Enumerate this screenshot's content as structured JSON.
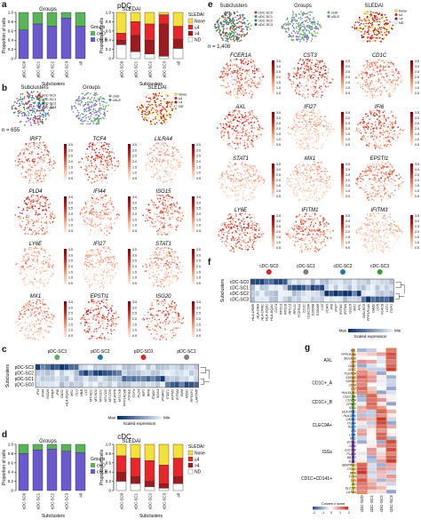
{
  "panels": {
    "a": "a",
    "b": "b",
    "c": "c",
    "d": "d",
    "e": "e",
    "f": "f",
    "g": "g"
  },
  "panel_a": {
    "header": "pDC",
    "groups_title": "Groups",
    "sledai_title": "SLEDAI",
    "ylabel": "Proportion of cells",
    "xlabel": "Subclusters",
    "ticks": [
      "0",
      "0.2",
      "0.4",
      "0.6",
      "0.8",
      "1.0"
    ],
    "categories": [
      "pDC-SC0",
      "pDC-SC1",
      "pDC-SC2",
      "pDC-SC3",
      "All"
    ],
    "groups_legend_title": "Groups",
    "groups_legend": [
      "cHD",
      "cSLE"
    ],
    "sledai_legend_title": "SLEDAI",
    "sledai_legend": [
      "None",
      "≤4",
      ">4",
      "ND"
    ]
  },
  "panel_b": {
    "titles": [
      "Subclusters",
      "Groups",
      "SLEDAI"
    ],
    "n_label": "n = 655",
    "sub_legend": [
      "pDC-SC0",
      "pDC-SC1",
      "pDC-SC2",
      "pDC-SC3"
    ],
    "group_legend": [
      "cHD",
      "cSLE"
    ],
    "sledai_legend": [
      "None",
      "≤4",
      ">4",
      "ND"
    ],
    "genes": [
      "IRF7",
      "TCF4",
      "LILRA4",
      "PLD4",
      "IFI44",
      "ISG15",
      "LY6E",
      "IFI27",
      "STAT1",
      "MX1",
      "EPSTI1",
      "ISG20"
    ],
    "scales": [
      "3.5",
      "3.0",
      "2.5",
      "2.0",
      "1.5",
      "1.0",
      "0.5"
    ]
  },
  "panel_c": {
    "cols": [
      "pDC-SC3",
      "pDC-SC2",
      "pDC-SC0",
      "pDC-SC1"
    ],
    "rows": [
      "pDC-SC3",
      "pDC-SC2",
      "pDC-SC1",
      "pDC-SC0"
    ],
    "ylabel": "Subclusters",
    "genes": [
      "IFI4",
      "IFI44",
      "ISG20",
      "PPBP",
      "IFI6",
      "OAS1",
      "HLA-DQA1",
      "MX1",
      "CLU",
      "HBB",
      "LYZ",
      "MT-ND1",
      "MT-ND2",
      "MT-CO1",
      "MT-CO2",
      "MT-CO3",
      "MT-ATP6",
      "MT-CYB",
      "PPP1R14B",
      "PTPRS",
      "TCF4",
      "PLD4",
      "IRF7",
      "IRF8",
      "ITM2C",
      "SOX4",
      "IFNAR1",
      "STAT1",
      "IFITM1",
      "IFITM3",
      "B2M",
      "MZB1",
      "RPS4Y1",
      "LAPTM5"
    ],
    "legend": {
      "max": "Max",
      "min": "Min",
      "label": "Scaled expression"
    }
  },
  "panel_d": {
    "header": "cDC",
    "groups_title": "Groups",
    "sledai_title": "SLEDAI",
    "ylabel": "Proportion of cells",
    "xlabel": "Subclusters",
    "ticks": [
      "0",
      "0.2",
      "0.4",
      "0.6",
      "0.8",
      "1.0"
    ],
    "categories": [
      "cDC-SC0",
      "cDC-SC1",
      "cDC-SC2",
      "cDC-SC3",
      "All"
    ],
    "groups_legend_title": "Groups",
    "groups_legend": [
      "cHD",
      "cSLE"
    ],
    "sledai_legend_title": "SLEDAI",
    "sledai_legend": [
      "None",
      "≤4",
      ">4",
      "ND"
    ]
  },
  "panel_e": {
    "titles": [
      "Subclusters",
      "Groups",
      "SLEDAI"
    ],
    "n_label": "n = 1,408",
    "sub_legend": [
      "cDC-SC0",
      "cDC-SC1",
      "cDC-SC2",
      "cDC-SC3"
    ],
    "group_legend": [
      "cHD",
      "cSLE"
    ],
    "sledai_legend": [
      "None",
      "≤4",
      ">4",
      "ND"
    ],
    "genes": [
      "FCER1A",
      "CST3",
      "CD1C",
      "AXL",
      "IFI27",
      "IFI6",
      "STAT1",
      "MX1",
      "EPSTI1",
      "LY6E",
      "IFITM1",
      "IFITM3"
    ],
    "scales": [
      "3.5",
      "3.0",
      "2.5",
      "2.0",
      "1.5",
      "1.0",
      "0.5"
    ]
  },
  "panel_f": {
    "cols": [
      "cDC-SC0",
      "cDC-SC1",
      "cDC-SC2",
      "cDC-SC3"
    ],
    "rows": [
      "cDC-SC0",
      "cDC-SC1",
      "cDC-SC2",
      "cDC-SC3"
    ],
    "ylabel": "Subclusters",
    "genes": [
      "HLA-DRB5",
      "HLA-DRA",
      "HLA-DPB1",
      "HLA-DQB1",
      "HLA-DQA1",
      "CD74",
      "RPS13",
      "RPS18",
      "RPL13",
      "RPL21",
      "FCER1A",
      "CD1C",
      "CLEC10A",
      "S100A8",
      "S100A9",
      "LYZ",
      "VCAN",
      "IFI6",
      "IFI27",
      "IFITM1",
      "IFITM3",
      "ISG15",
      "MX1",
      "AXL",
      "SIGLEC6",
      "PPP1R14A",
      "DAB2",
      "CD5",
      "PLAC8",
      "LST1",
      "TSPO"
    ],
    "legend": {
      "max": "Max",
      "min": "Min",
      "label": "Scaled expression"
    }
  },
  "panel_g": {
    "groups": [
      "AXL",
      "CD1C+_A",
      "CD1C+_B",
      "CLEC9A+",
      "ISGs",
      "CD1C+CD141+"
    ],
    "genes": [
      "AXL",
      "PPP1R14A",
      "SIGLEC6",
      "CD5",
      "DAB2",
      "CD1C",
      "FCER1A",
      "S100A8",
      "S100A9",
      "CD14",
      "LYZ",
      "HLA-DQA1",
      "CLEC10A",
      "C1orf54",
      "CPNE3",
      "IDO1",
      "HLA-DPA1",
      "HLA-DRA",
      "CADM1",
      "ITGAX",
      "ISG15",
      "IFI6",
      "LY6E",
      "MX1",
      "IFITM3",
      "CD86",
      "CLEC9A",
      "PLAC8",
      "BATF3",
      "XCR1",
      "SERPINA1",
      "ITGAX",
      "IRF8",
      "TCF4",
      "TXN",
      "ID2",
      "SLC7A5",
      "LILRA4"
    ],
    "cols": [
      "cDC-SC0",
      "cDC-SC1",
      "cDC-SC2",
      "cDC-SC3"
    ],
    "legend": {
      "label": "Column z score",
      "ticks": [
        "-2",
        "-1",
        "0",
        "1",
        "2"
      ]
    }
  }
}
